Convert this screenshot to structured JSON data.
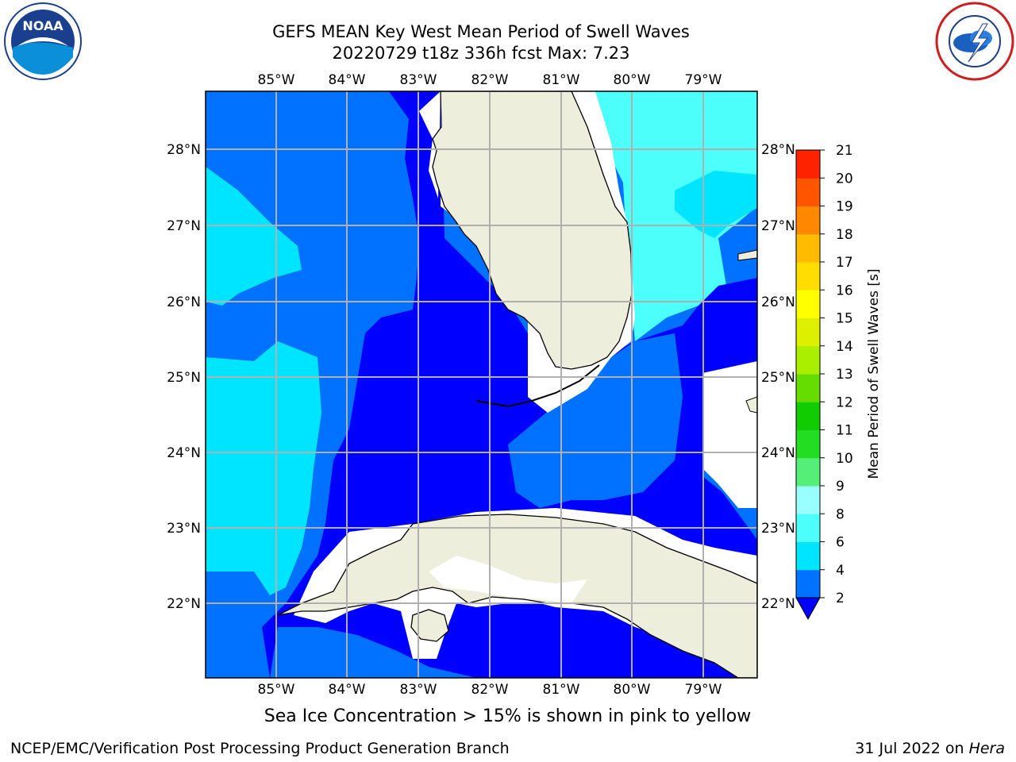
{
  "title_line1": "GEFS MEAN Key West Mean Period of Swell Waves",
  "title_line2": "20220729 t18z 336h fcst   Max: 7.23",
  "subtitle": "Sea Ice Concentration > 15% is shown in pink to yellow",
  "footer_left": "NCEP/EMC/Verification Post Processing Product Generation Branch",
  "footer_right_date": "31 Jul 2022 on ",
  "footer_right_host": "Hera",
  "logos": {
    "left": "noaa-logo",
    "right": "nws-logo",
    "noaa_text": "NOAA",
    "nws_ring_text": "NATIONAL WEATHER SERVICE"
  },
  "map": {
    "lon_labels": [
      "85°W",
      "84°W",
      "83°W",
      "82°W",
      "81°W",
      "80°W",
      "79°W"
    ],
    "lat_labels": [
      "28°N",
      "27°N",
      "26°N",
      "25°N",
      "24°N",
      "23°N",
      "22°N"
    ],
    "lon_range": [
      -86.0,
      -78.25
    ],
    "lat_range": [
      21.08,
      28.75
    ],
    "land_color": "#eeeedd",
    "grid_color": "#b0b0b0"
  },
  "colorbar": {
    "label": "Mean Period of Swell Waves [s]",
    "ticks": [
      "2",
      "4",
      "6",
      "8",
      "9",
      "10",
      "11",
      "12",
      "13",
      "14",
      "15",
      "16",
      "17",
      "18",
      "19",
      "20",
      "21"
    ],
    "colors": [
      "#0072ff",
      "#00e5ff",
      "#4dfffb",
      "#99ffff",
      "#55ee77",
      "#22dd22",
      "#11cc00",
      "#66dd00",
      "#aaee00",
      "#ddf000",
      "#ffff00",
      "#ffdd00",
      "#ffbb00",
      "#ff8800",
      "#ff5500",
      "#ff2200"
    ],
    "under_color": "#0000ff"
  }
}
